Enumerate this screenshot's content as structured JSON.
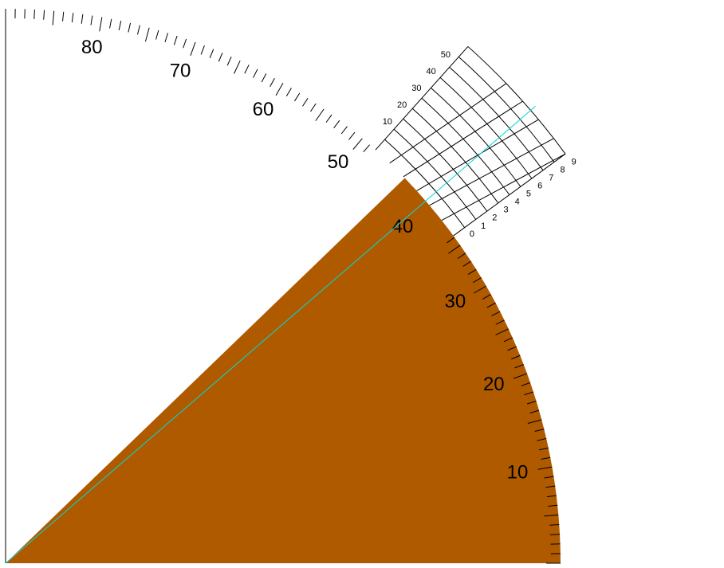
{
  "protractor": {
    "range_degrees": [
      0,
      90
    ],
    "major_label_step": 10,
    "tick_step_degrees": 1,
    "major_labels": [
      "10",
      "20",
      "30",
      "40",
      "50",
      "60",
      "70",
      "80"
    ]
  },
  "sector": {
    "angle_degrees": 44,
    "fill_color": "#b05a00"
  },
  "pointer_line": {
    "angle_degrees": 40.8,
    "color": "#00d8d8"
  },
  "vernier": {
    "center_angle_degrees": 42.2,
    "half_width_degrees": 6,
    "rows": 10,
    "column_labels": [
      "10",
      "20",
      "30",
      "40",
      "50"
    ],
    "row_labels": [
      "0",
      "1",
      "2",
      "3",
      "4",
      "5",
      "6",
      "7",
      "8",
      "9"
    ]
  },
  "colors": {
    "ink": "#000000",
    "background": "#ffffff"
  }
}
